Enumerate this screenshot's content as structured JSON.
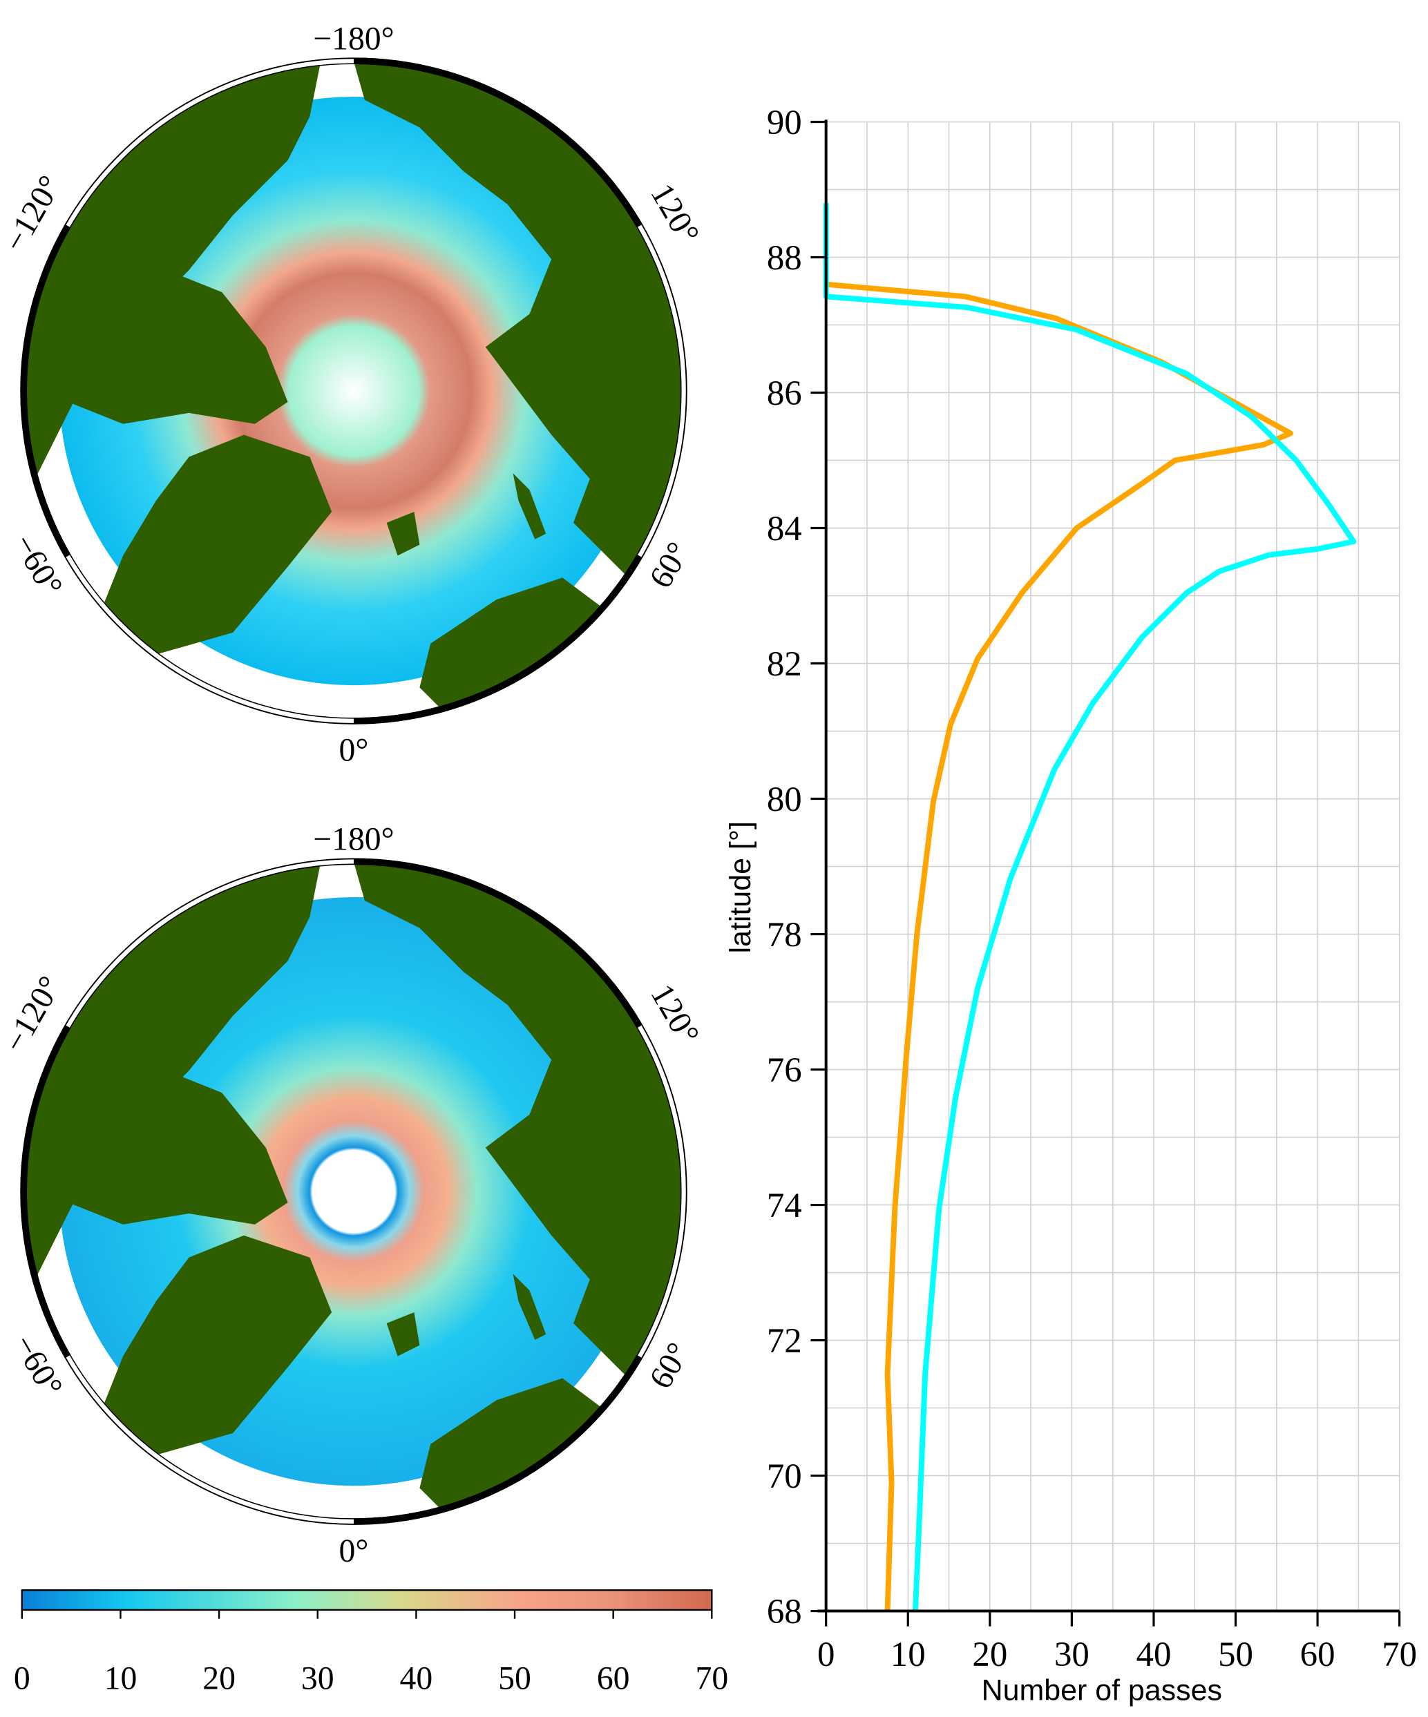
{
  "maps": [
    {
      "lon_labels": [
        "−180°",
        "120°",
        "60°",
        "0°",
        "−60°",
        "−120°"
      ],
      "ring_peak_value": 60,
      "hole": "white"
    },
    {
      "lon_labels": [
        "−180°",
        "120°",
        "60°",
        "0°",
        "−60°",
        "−120°"
      ],
      "ring_peak_value": 55,
      "hole": "white"
    }
  ],
  "colors": {
    "land": "#2f5e00",
    "ocean_low": "#0ab3ee",
    "ring": "#e2806a",
    "orange": "#ffa500",
    "cyan": "#00ffff"
  },
  "colorbar": {
    "ticks": [
      "0",
      "10",
      "20",
      "30",
      "40",
      "50",
      "60",
      "70"
    ],
    "range": [
      0,
      70
    ],
    "stops": [
      "#0a7fd8",
      "#14c8f0",
      "#8ef0c8",
      "#d9d88a",
      "#f7a48a",
      "#e9927a",
      "#d26a50"
    ]
  },
  "chart_data": {
    "type": "line",
    "xlabel": "Number of passes",
    "ylabel": "latitude [°]",
    "xlim": [
      0,
      70
    ],
    "ylim": [
      68,
      90
    ],
    "xticks": [
      "0",
      "10",
      "20",
      "30",
      "40",
      "50",
      "60",
      "70"
    ],
    "yticks": [
      "68",
      "70",
      "72",
      "74",
      "76",
      "78",
      "80",
      "82",
      "84",
      "86",
      "88",
      "90"
    ],
    "grid": true,
    "series": [
      {
        "color": "#ffa500",
        "points": [
          [
            0,
            87.6
          ],
          [
            17,
            87.42
          ],
          [
            28,
            87.1
          ],
          [
            41,
            86.45
          ],
          [
            50.7,
            85.8
          ],
          [
            56.7,
            85.4
          ],
          [
            53.4,
            85.23
          ],
          [
            42.6,
            85.0
          ],
          [
            38.6,
            84.66
          ],
          [
            30.6,
            84.0
          ],
          [
            23.9,
            83.04
          ],
          [
            18.5,
            82.07
          ],
          [
            15.2,
            81.1
          ],
          [
            13.1,
            79.96
          ],
          [
            11.1,
            78.0
          ],
          [
            9.8,
            76.2
          ],
          [
            8.4,
            73.95
          ],
          [
            7.5,
            71.5
          ],
          [
            8.0,
            69.9
          ],
          [
            7.5,
            68
          ]
        ]
      },
      {
        "color": "#00ffff",
        "points": [
          [
            0,
            88.8
          ],
          [
            0,
            87.42
          ],
          [
            17.2,
            87.26
          ],
          [
            30.6,
            86.93
          ],
          [
            44,
            86.28
          ],
          [
            52,
            85.64
          ],
          [
            57.4,
            85.0
          ],
          [
            61.4,
            84.34
          ],
          [
            64.4,
            83.8
          ],
          [
            60,
            83.69
          ],
          [
            54,
            83.6
          ],
          [
            48,
            83.36
          ],
          [
            44,
            83.04
          ],
          [
            38.6,
            82.39
          ],
          [
            32.6,
            81.42
          ],
          [
            27.9,
            80.44
          ],
          [
            22.5,
            78.82
          ],
          [
            18.5,
            77.2
          ],
          [
            15.8,
            75.58
          ],
          [
            13.8,
            73.95
          ],
          [
            12.1,
            71.5
          ],
          [
            11.3,
            69.1
          ],
          [
            10.9,
            68
          ]
        ]
      }
    ]
  }
}
